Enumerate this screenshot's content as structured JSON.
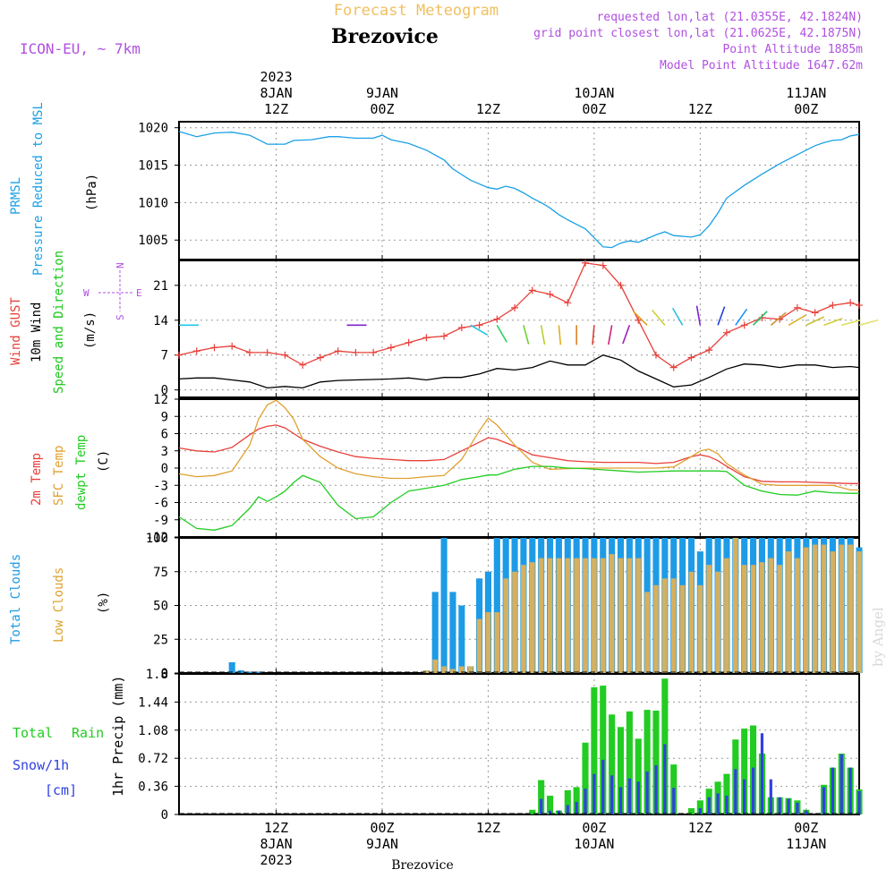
{
  "header": {
    "product": "Forecast Meteogram",
    "location": "Brezovice",
    "model": "ICON-EU, ~ 7km",
    "requested": "requested lon,lat (21.0355E, 42.1824N)",
    "grid_point": "grid point closest lon,lat (21.0625E, 42.1875N)",
    "altitude": "Point Altitude 1885m",
    "model_altitude": "Model Point Altitude 1647.62m",
    "footer_location": "Brezovice",
    "credit": "by Angel"
  },
  "time_axis": {
    "top_ticks": [
      {
        "hour": 12,
        "lines": [
          "2023",
          "8JAN",
          "12Z"
        ]
      },
      {
        "hour": 24,
        "lines": [
          "9JAN",
          "00Z"
        ]
      },
      {
        "hour": 36,
        "lines": [
          "12Z"
        ]
      },
      {
        "hour": 48,
        "lines": [
          "10JAN",
          "00Z"
        ]
      },
      {
        "hour": 60,
        "lines": [
          "12Z"
        ]
      },
      {
        "hour": 72,
        "lines": [
          "11JAN",
          "00Z"
        ]
      }
    ],
    "bottom_ticks": [
      {
        "hour": 12,
        "lines": [
          "12Z",
          "8JAN",
          "2023"
        ]
      },
      {
        "hour": 24,
        "lines": [
          "00Z",
          "9JAN"
        ]
      },
      {
        "hour": 36,
        "lines": [
          "12Z"
        ]
      },
      {
        "hour": 48,
        "lines": [
          "00Z",
          "10JAN"
        ]
      },
      {
        "hour": 60,
        "lines": [
          "12Z"
        ]
      },
      {
        "hour": 72,
        "lines": [
          "00Z",
          "11JAN"
        ]
      }
    ],
    "start_hour": 1,
    "end_hour": 78
  },
  "colors": {
    "pressure": "#1aa0e6",
    "gust": "#e8403a",
    "wind": "#000000",
    "dir_label": "#1ec81e",
    "temp2m": "#e8403a",
    "sfc": "#e0a030",
    "dewpt": "#22cc22",
    "total_cloud": "#1e9be6",
    "low_cloud": "#d4b060",
    "rain": "#22cc22",
    "snow": "#3040e0",
    "header_purple": "#b050e0",
    "header_gold": "#f0c060"
  },
  "panels": {
    "pressure": {
      "labels": [
        "PRMSL",
        "Pressure Reduced to MSL",
        "(hPa)"
      ]
    },
    "wind": {
      "labels": [
        "Wind GUST",
        "10m Wind",
        "Speed and Direction",
        "(m/s)"
      ],
      "compass": [
        "N",
        "W",
        "E",
        "S"
      ]
    },
    "temp": {
      "labels": [
        "2m Temp",
        "SFC Temp",
        "dewpt Temp",
        "(C)"
      ]
    },
    "cloud": {
      "labels": [
        "Total Clouds",
        "Low Clouds",
        "(%)"
      ]
    },
    "precip": {
      "labels": [
        "Total",
        "Rain",
        "Snow/1h",
        "[cm]",
        "1hr Precip (mm)"
      ]
    }
  },
  "chart_data": [
    {
      "type": "line",
      "title": "PRMSL",
      "ylabel": "(hPa)",
      "ylim": [
        1002.4,
        1020.8
      ],
      "yticks": [
        "1005",
        "1010",
        "1015",
        "1020"
      ],
      "x": [
        1,
        3,
        5,
        7,
        9,
        11,
        12,
        13,
        14,
        16,
        18,
        19,
        21,
        23,
        24,
        25,
        27,
        29,
        31,
        32,
        34,
        36,
        37,
        38,
        39,
        40,
        41,
        42,
        43,
        44,
        45,
        47,
        48,
        49,
        50,
        51,
        52,
        53,
        55,
        56,
        57,
        59,
        60,
        61,
        62,
        63,
        65,
        67,
        69,
        71,
        73,
        74,
        75,
        76,
        77,
        78
      ],
      "series": [
        {
          "name": "PRMSL",
          "values": [
            1019.5,
            1018.8,
            1019.3,
            1019.4,
            1019.0,
            1017.8,
            1017.8,
            1017.8,
            1018.3,
            1018.4,
            1018.8,
            1018.8,
            1018.6,
            1018.6,
            1019.0,
            1018.4,
            1017.9,
            1017.0,
            1015.7,
            1014.5,
            1013.0,
            1012.0,
            1011.8,
            1012.2,
            1011.9,
            1011.3,
            1010.6,
            1010.0,
            1009.3,
            1008.4,
            1007.7,
            1006.5,
            1005.3,
            1004.1,
            1004.0,
            1004.6,
            1004.9,
            1004.7,
            1005.7,
            1006.1,
            1005.6,
            1005.4,
            1005.7,
            1006.9,
            1008.6,
            1010.6,
            1012.3,
            1013.8,
            1015.2,
            1016.4,
            1017.6,
            1018.0,
            1018.3,
            1018.4,
            1018.9,
            1019.1
          ]
        }
      ]
    },
    {
      "type": "line",
      "title": "Wind",
      "ylabel": "(m/s)",
      "ylim": [
        -1.5,
        26
      ],
      "yticks": [
        "0",
        "7",
        "14",
        "21"
      ],
      "x": [
        1,
        3,
        5,
        7,
        9,
        11,
        13,
        15,
        17,
        19,
        21,
        23,
        25,
        27,
        29,
        31,
        33,
        35,
        37,
        39,
        41,
        43,
        45,
        47,
        49,
        51,
        53,
        55,
        57,
        59,
        61,
        63,
        65,
        67,
        69,
        71,
        73,
        75,
        77,
        78
      ],
      "series": [
        {
          "name": "Wind GUST",
          "values": [
            7.0,
            7.8,
            8.5,
            8.8,
            7.5,
            7.5,
            7.0,
            5.0,
            6.5,
            7.8,
            7.5,
            7.5,
            8.5,
            9.5,
            10.5,
            10.8,
            12.5,
            13.0,
            14.2,
            16.5,
            20.0,
            19.2,
            17.5,
            25.5,
            25.0,
            21.0,
            14.0,
            7.0,
            4.5,
            6.5,
            8.0,
            11.5,
            13.0,
            14.5,
            14.2,
            16.5,
            15.5,
            17.0,
            17.5,
            17.0
          ]
        },
        {
          "name": "10m Wind",
          "values": [
            2.2,
            2.4,
            2.4,
            2.0,
            1.6,
            0.4,
            0.7,
            0.4,
            1.6,
            1.9,
            2.0,
            2.1,
            2.2,
            2.4,
            2.0,
            2.5,
            2.5,
            3.2,
            4.3,
            4.0,
            4.5,
            5.8,
            5.0,
            5.0,
            7.0,
            6.0,
            3.8,
            2.2,
            0.6,
            1.0,
            2.5,
            4.2,
            5.2,
            5.0,
            4.5,
            5.0,
            5.0,
            4.5,
            4.7,
            4.5
          ]
        }
      ],
      "direction_arrows_from": {
        "hours": [
          1,
          20,
          34,
          37,
          40,
          42,
          44,
          46,
          48,
          50,
          52,
          54,
          56,
          58,
          60,
          62,
          64,
          66,
          68,
          70,
          72,
          74,
          76,
          78
        ],
        "direction_deg": [
          270,
          270,
          300,
          330,
          345,
          350,
          355,
          0,
          5,
          10,
          20,
          135,
          140,
          150,
          170,
          200,
          215,
          225,
          230,
          240,
          245,
          250,
          255,
          255
        ]
      }
    },
    {
      "type": "line",
      "title": "Temperature",
      "ylabel": "(C)",
      "ylim": [
        -12,
        12
      ],
      "yticks": [
        "-12",
        "-9",
        "-6",
        "-3",
        "0",
        "3",
        "6",
        "9",
        "12"
      ],
      "x": [
        1,
        3,
        5,
        7,
        9,
        10,
        11,
        12,
        13,
        14,
        15,
        17,
        19,
        21,
        23,
        25,
        27,
        29,
        31,
        33,
        35,
        36,
        37,
        39,
        41,
        43,
        45,
        47,
        49,
        51,
        53,
        55,
        57,
        59,
        60,
        61,
        62,
        63,
        65,
        67,
        69,
        71,
        73,
        75,
        77,
        78
      ],
      "series": [
        {
          "name": "2m Temp",
          "values": [
            3.5,
            3.0,
            2.8,
            3.6,
            5.8,
            6.8,
            7.3,
            7.5,
            7.0,
            6.0,
            5.0,
            3.8,
            2.8,
            2.0,
            1.7,
            1.5,
            1.3,
            1.3,
            1.5,
            3.0,
            4.5,
            5.3,
            5.0,
            3.8,
            2.3,
            1.8,
            1.3,
            1.1,
            1.0,
            1.0,
            1.0,
            0.8,
            1.0,
            2.0,
            2.3,
            2.0,
            1.3,
            0.3,
            -1.5,
            -2.3,
            -2.4,
            -2.4,
            -2.5,
            -2.6,
            -2.7,
            -2.7
          ]
        },
        {
          "name": "SFC Temp",
          "values": [
            -1.0,
            -1.5,
            -1.3,
            -0.5,
            4.0,
            8.5,
            11.0,
            11.8,
            10.5,
            8.5,
            5.0,
            2.0,
            0.0,
            -1.0,
            -1.5,
            -1.8,
            -1.8,
            -1.5,
            -1.3,
            1.5,
            6.5,
            8.7,
            7.5,
            4.0,
            1.0,
            -0.2,
            -0.1,
            0.0,
            0.0,
            0.0,
            0.0,
            0.0,
            0.2,
            2.0,
            3.0,
            3.3,
            2.5,
            0.8,
            -1.2,
            -2.8,
            -3.0,
            -3.0,
            -3.0,
            -3.0,
            -3.8,
            -3.8
          ]
        },
        {
          "name": "dewpt Temp",
          "values": [
            -8.5,
            -10.5,
            -10.8,
            -10.0,
            -7.0,
            -5.0,
            -5.8,
            -5.0,
            -4.0,
            -2.5,
            -1.3,
            -2.5,
            -6.5,
            -8.8,
            -8.5,
            -6.0,
            -4.0,
            -3.5,
            -3.0,
            -2.0,
            -1.5,
            -1.2,
            -1.2,
            -0.2,
            0.3,
            0.3,
            0.0,
            -0.1,
            -0.3,
            -0.5,
            -0.7,
            -0.6,
            -0.5,
            -0.5,
            -0.5,
            -0.5,
            -0.5,
            -0.6,
            -3.0,
            -4.0,
            -4.6,
            -4.7,
            -4.0,
            -4.3,
            -4.4,
            -4.4
          ]
        }
      ]
    },
    {
      "type": "bar",
      "title": "Clouds",
      "ylabel": "(%)",
      "ylim": [
        0,
        100
      ],
      "yticks": [
        "0",
        "25",
        "50",
        "75",
        "100"
      ],
      "x": [
        7,
        8,
        9,
        10,
        29,
        30,
        31,
        32,
        33,
        34,
        35,
        36,
        37,
        38,
        39,
        40,
        41,
        42,
        43,
        44,
        45,
        46,
        47,
        48,
        49,
        50,
        51,
        52,
        53,
        54,
        55,
        56,
        57,
        58,
        59,
        60,
        61,
        62,
        63,
        64,
        65,
        66,
        67,
        68,
        69,
        70,
        71,
        72,
        73,
        74,
        75,
        76,
        77,
        78
      ],
      "series": [
        {
          "name": "Total Clouds",
          "values": [
            8,
            2,
            1,
            1,
            2,
            60,
            100,
            60,
            50,
            5,
            70,
            75,
            100,
            100,
            100,
            100,
            100,
            100,
            100,
            100,
            100,
            100,
            100,
            100,
            100,
            100,
            100,
            100,
            100,
            100,
            100,
            100,
            100,
            100,
            100,
            90,
            100,
            100,
            100,
            100,
            100,
            100,
            100,
            100,
            100,
            100,
            100,
            100,
            100,
            100,
            100,
            100,
            100,
            93
          ]
        },
        {
          "name": "Low Clouds",
          "values": [
            0,
            0,
            0,
            0,
            2,
            10,
            5,
            3,
            5,
            5,
            40,
            45,
            45,
            70,
            75,
            80,
            82,
            85,
            85,
            85,
            85,
            85,
            85,
            85,
            85,
            88,
            85,
            85,
            85,
            60,
            65,
            70,
            70,
            65,
            75,
            65,
            80,
            75,
            85,
            100,
            80,
            80,
            82,
            85,
            80,
            90,
            85,
            93,
            95,
            95,
            90,
            95,
            95,
            90
          ]
        }
      ]
    },
    {
      "type": "bar",
      "title": "1hr Precip",
      "ylabel": "1hr Precip (mm)",
      "ylim": [
        0,
        1.8
      ],
      "yticks": [
        "0",
        "0.36",
        "0.72",
        "1.08",
        "1.44",
        "1.8"
      ],
      "x": [
        41,
        42,
        43,
        44,
        45,
        46,
        47,
        48,
        49,
        50,
        51,
        52,
        53,
        54,
        55,
        56,
        57,
        58,
        59,
        60,
        61,
        62,
        63,
        64,
        65,
        66,
        67,
        68,
        69,
        70,
        71,
        72,
        73,
        74,
        75,
        76,
        77,
        78
      ],
      "series": [
        {
          "name": "Total Rain",
          "values": [
            0.06,
            0.44,
            0.24,
            0.05,
            0.31,
            0.35,
            0.92,
            1.63,
            1.65,
            1.28,
            1.12,
            1.32,
            0.97,
            1.34,
            1.33,
            1.74,
            0.64,
            0.0,
            0.08,
            0.18,
            0.33,
            0.42,
            0.52,
            0.96,
            1.1,
            1.14,
            0.78,
            0.22,
            0.22,
            0.21,
            0.18,
            0.06,
            0.0,
            0.38,
            0.6,
            0.78,
            0.6,
            0.32
          ]
        },
        {
          "name": "Snow/1h",
          "values": [
            0.0,
            0.2,
            0.05,
            0.05,
            0.12,
            0.16,
            0.33,
            0.52,
            0.7,
            0.5,
            0.35,
            0.46,
            0.42,
            0.55,
            0.63,
            0.9,
            0.34,
            0.0,
            0.0,
            0.08,
            0.22,
            0.27,
            0.24,
            0.58,
            0.45,
            0.6,
            1.04,
            0.45,
            0.22,
            0.2,
            0.15,
            0.05,
            0.0,
            0.35,
            0.6,
            0.77,
            0.6,
            0.3
          ]
        }
      ]
    }
  ]
}
